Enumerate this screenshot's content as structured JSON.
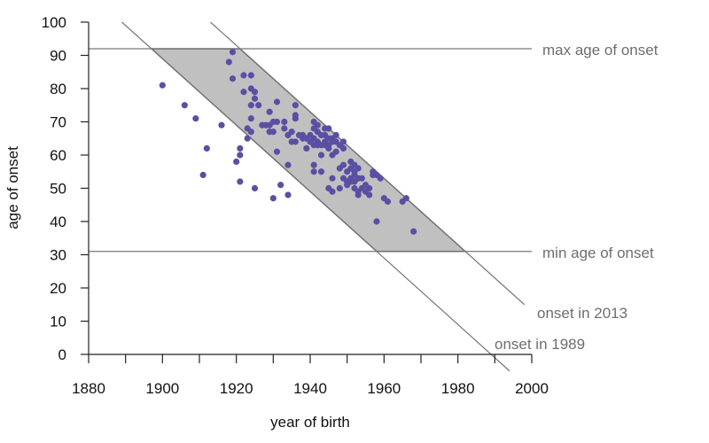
{
  "chart_data": {
    "type": "scatter",
    "title": "",
    "xlabel": "year of birth",
    "ylabel": "age of onset",
    "xlim": [
      1880,
      2000
    ],
    "ylim": [
      0,
      100
    ],
    "x_ticks": [
      "1880",
      "1900",
      "1920",
      "1940",
      "1960",
      "1980",
      "2000"
    ],
    "y_ticks": [
      "0",
      "10",
      "20",
      "30",
      "40",
      "50",
      "60",
      "70",
      "80",
      "90",
      "100"
    ],
    "grid": false,
    "reference_lines": {
      "max_onset": {
        "label": "max age of onset",
        "age": 92
      },
      "min_onset": {
        "label": "min age of onset",
        "age": 31
      },
      "onset_2013": {
        "label": "onset in 2013",
        "year": 2013
      },
      "onset_1989": {
        "label": "onset in 1989",
        "year": 1989
      }
    },
    "region_fill": "#c0c0c0",
    "point_color": "#5a4fa3",
    "points": [
      [
        1900,
        81
      ],
      [
        1906,
        75
      ],
      [
        1909,
        71
      ],
      [
        1911,
        54
      ],
      [
        1912,
        62
      ],
      [
        1916,
        69
      ],
      [
        1918,
        88
      ],
      [
        1919,
        91
      ],
      [
        1919,
        83
      ],
      [
        1920,
        58
      ],
      [
        1921,
        62
      ],
      [
        1921,
        60
      ],
      [
        1921,
        52
      ],
      [
        1922,
        84
      ],
      [
        1922,
        79
      ],
      [
        1923,
        68
      ],
      [
        1923,
        65
      ],
      [
        1924,
        84
      ],
      [
        1924,
        80
      ],
      [
        1924,
        75
      ],
      [
        1924,
        71
      ],
      [
        1924,
        67
      ],
      [
        1925,
        79
      ],
      [
        1925,
        77
      ],
      [
        1925,
        50
      ],
      [
        1926,
        75
      ],
      [
        1927,
        69
      ],
      [
        1928,
        69
      ],
      [
        1929,
        73
      ],
      [
        1929,
        69
      ],
      [
        1929,
        67
      ],
      [
        1930,
        70
      ],
      [
        1930,
        67
      ],
      [
        1930,
        47
      ],
      [
        1931,
        76
      ],
      [
        1931,
        70
      ],
      [
        1931,
        61
      ],
      [
        1932,
        51
      ],
      [
        1933,
        68
      ],
      [
        1933,
        70
      ],
      [
        1934,
        57
      ],
      [
        1934,
        48
      ],
      [
        1934,
        66
      ],
      [
        1935,
        64
      ],
      [
        1935,
        67
      ],
      [
        1936,
        75
      ],
      [
        1936,
        72
      ],
      [
        1936,
        71
      ],
      [
        1936,
        64
      ],
      [
        1937,
        66
      ],
      [
        1938,
        66
      ],
      [
        1938,
        65
      ],
      [
        1939,
        65
      ],
      [
        1939,
        62
      ],
      [
        1940,
        66
      ],
      [
        1940,
        64
      ],
      [
        1941,
        70
      ],
      [
        1941,
        68
      ],
      [
        1941,
        65
      ],
      [
        1941,
        63
      ],
      [
        1941,
        57
      ],
      [
        1941,
        55
      ],
      [
        1942,
        69
      ],
      [
        1942,
        67
      ],
      [
        1942,
        64
      ],
      [
        1942,
        63
      ],
      [
        1943,
        66
      ],
      [
        1943,
        63
      ],
      [
        1943,
        60
      ],
      [
        1943,
        55
      ],
      [
        1944,
        68
      ],
      [
        1944,
        66
      ],
      [
        1944,
        64
      ],
      [
        1944,
        63
      ],
      [
        1945,
        68
      ],
      [
        1945,
        65
      ],
      [
        1945,
        63
      ],
      [
        1945,
        62
      ],
      [
        1945,
        50
      ],
      [
        1946,
        65
      ],
      [
        1946,
        64
      ],
      [
        1946,
        60
      ],
      [
        1946,
        53
      ],
      [
        1946,
        49
      ],
      [
        1947,
        66
      ],
      [
        1947,
        64
      ],
      [
        1947,
        61
      ],
      [
        1948,
        63
      ],
      [
        1948,
        56
      ],
      [
        1948,
        50
      ],
      [
        1949,
        64
      ],
      [
        1949,
        62
      ],
      [
        1949,
        57
      ],
      [
        1949,
        53
      ],
      [
        1950,
        55
      ],
      [
        1950,
        52
      ],
      [
        1950,
        51
      ],
      [
        1951,
        58
      ],
      [
        1951,
        56
      ],
      [
        1951,
        53
      ],
      [
        1951,
        52
      ],
      [
        1952,
        57
      ],
      [
        1952,
        55
      ],
      [
        1952,
        54
      ],
      [
        1952,
        52
      ],
      [
        1952,
        50
      ],
      [
        1953,
        56
      ],
      [
        1953,
        53
      ],
      [
        1953,
        49
      ],
      [
        1953,
        48
      ],
      [
        1954,
        53
      ],
      [
        1954,
        50
      ],
      [
        1955,
        51
      ],
      [
        1955,
        49
      ],
      [
        1956,
        50
      ],
      [
        1956,
        48
      ],
      [
        1957,
        55
      ],
      [
        1957,
        54
      ],
      [
        1958,
        54
      ],
      [
        1958,
        40
      ],
      [
        1959,
        53
      ],
      [
        1960,
        47
      ],
      [
        1961,
        46
      ],
      [
        1965,
        46
      ],
      [
        1966,
        47
      ],
      [
        1968,
        37
      ]
    ]
  }
}
